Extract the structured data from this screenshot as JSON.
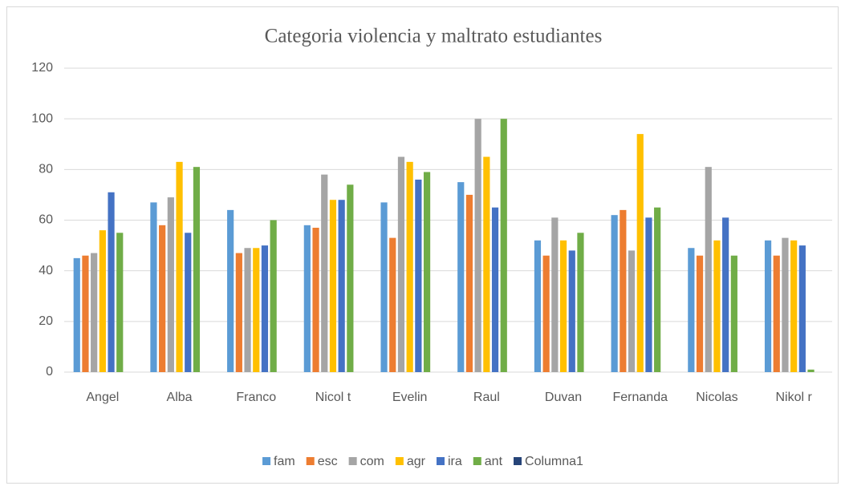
{
  "chart_data": {
    "type": "bar",
    "title": "Categoria violencia y maltrato estudiantes",
    "categories": [
      "Angel",
      "Alba",
      "Franco",
      "Nicol t",
      "Evelin",
      "Raul",
      "Duvan",
      "Fernanda",
      "Nicolas",
      "Nikol r"
    ],
    "series": [
      {
        "name": "fam",
        "color": "#5b9bd5",
        "values": [
          45,
          67,
          64,
          58,
          67,
          75,
          52,
          62,
          49,
          52
        ]
      },
      {
        "name": "esc",
        "color": "#ed7d31",
        "values": [
          46,
          58,
          47,
          57,
          53,
          70,
          46,
          64,
          46,
          46
        ]
      },
      {
        "name": "com",
        "color": "#a5a5a5",
        "values": [
          47,
          69,
          49,
          78,
          85,
          100,
          61,
          48,
          81,
          53
        ]
      },
      {
        "name": "agr",
        "color": "#ffc000",
        "values": [
          56,
          83,
          49,
          68,
          83,
          85,
          52,
          94,
          52,
          52
        ]
      },
      {
        "name": "ira",
        "color": "#4472c4",
        "values": [
          71,
          55,
          50,
          68,
          76,
          65,
          48,
          61,
          61,
          50
        ]
      },
      {
        "name": "ant",
        "color": "#70ad47",
        "values": [
          55,
          81,
          60,
          74,
          79,
          100,
          55,
          65,
          46,
          1
        ]
      },
      {
        "name": "Columna1",
        "color": "#264478",
        "values": [
          null,
          null,
          null,
          null,
          null,
          null,
          null,
          null,
          null,
          null
        ]
      }
    ],
    "ylim": [
      0,
      120
    ],
    "yticks": [
      0,
      20,
      40,
      60,
      80,
      100,
      120
    ],
    "grid": true,
    "legend": "bottom"
  }
}
